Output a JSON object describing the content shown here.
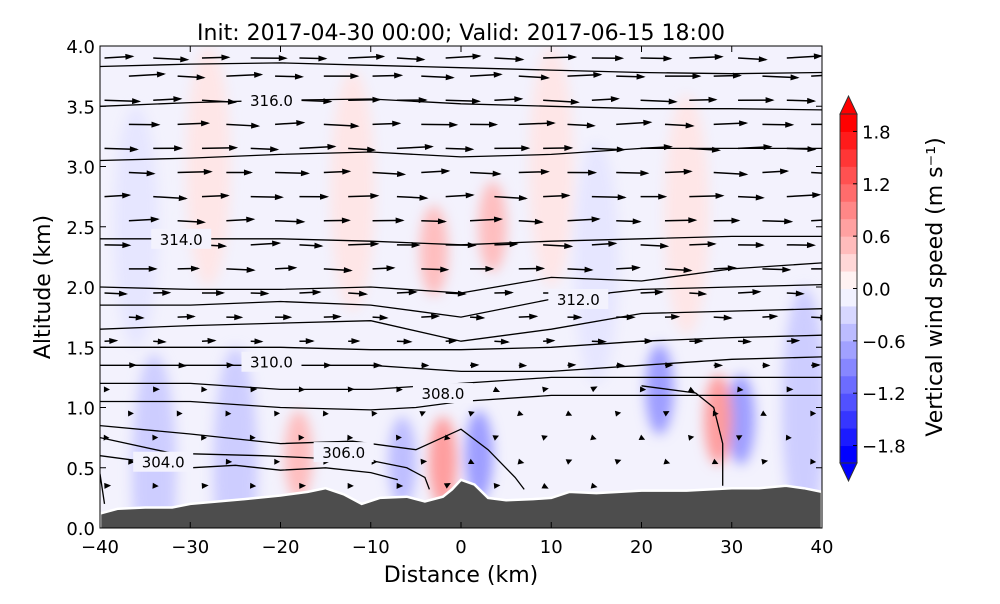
{
  "chart_data": {
    "type": "heatmap",
    "title": "Init: 2017-04-30 00:00; Valid: 2017-06-15 18:00",
    "xlabel": "Distance (km)",
    "ylabel": "Altitude (km)",
    "xlim": [
      -40,
      40
    ],
    "ylim": [
      0,
      4
    ],
    "xticks": [
      -40,
      -30,
      -20,
      -10,
      0,
      10,
      20,
      30,
      40
    ],
    "xtick_labels": [
      "−40",
      "−30",
      "−20",
      "−10",
      "0",
      "10",
      "20",
      "30",
      "40"
    ],
    "yticks": [
      0,
      0.5,
      1,
      1.5,
      2,
      2.5,
      3,
      3.5,
      4
    ],
    "ytick_labels": [
      "0.0",
      "0.5",
      "1.0",
      "1.5",
      "2.0",
      "2.5",
      "3.0",
      "3.5",
      "4.0"
    ],
    "colorbar": {
      "label": "Vertical wind speed (m s⁻¹)",
      "range": [
        -2.0,
        2.0
      ],
      "levels": 20,
      "extend": "both",
      "ticks": [
        1.8,
        1.2,
        0.6,
        0.0,
        -0.6,
        -1.2,
        -1.8
      ],
      "tick_labels": [
        "1.8",
        "1.2",
        "0.6",
        "0.0",
        "−0.6",
        "−1.2",
        "−1.8"
      ],
      "colormap": "bwr"
    },
    "terrain": {
      "color": "#4d4d4d",
      "points": [
        [
          -40,
          0.12
        ],
        [
          -38,
          0.16
        ],
        [
          -35,
          0.17
        ],
        [
          -32,
          0.17
        ],
        [
          -30,
          0.2
        ],
        [
          -27,
          0.22
        ],
        [
          -24,
          0.24
        ],
        [
          -20,
          0.27
        ],
        [
          -17,
          0.3
        ],
        [
          -15,
          0.33
        ],
        [
          -13,
          0.28
        ],
        [
          -11,
          0.2
        ],
        [
          -9,
          0.25
        ],
        [
          -6,
          0.26
        ],
        [
          -4,
          0.22
        ],
        [
          -2,
          0.26
        ],
        [
          -1,
          0.32
        ],
        [
          0,
          0.4
        ],
        [
          1.5,
          0.36
        ],
        [
          3,
          0.25
        ],
        [
          5,
          0.23
        ],
        [
          8,
          0.24
        ],
        [
          10,
          0.25
        ],
        [
          12,
          0.3
        ],
        [
          15,
          0.29
        ],
        [
          20,
          0.31
        ],
        [
          25,
          0.31
        ],
        [
          30,
          0.33
        ],
        [
          33,
          0.33
        ],
        [
          36,
          0.35
        ],
        [
          38,
          0.33
        ],
        [
          40,
          0.3
        ]
      ]
    },
    "theta_contours": [
      {
        "label": "",
        "points": [
          [
            -40,
            3.83
          ],
          [
            -30,
            3.85
          ],
          [
            -20,
            3.86
          ],
          [
            -10,
            3.84
          ],
          [
            0,
            3.82
          ],
          [
            10,
            3.8
          ],
          [
            20,
            3.78
          ],
          [
            30,
            3.77
          ],
          [
            40,
            3.78
          ]
        ]
      },
      {
        "label": "316.0",
        "label_at": [
          -21,
          3.55
        ],
        "points": [
          [
            -40,
            3.5
          ],
          [
            -30,
            3.53
          ],
          [
            -20,
            3.55
          ],
          [
            -10,
            3.56
          ],
          [
            0,
            3.52
          ],
          [
            10,
            3.5
          ],
          [
            20,
            3.48
          ],
          [
            30,
            3.48
          ],
          [
            40,
            3.47
          ]
        ]
      },
      {
        "label": "",
        "points": [
          [
            -40,
            3.05
          ],
          [
            -30,
            3.07
          ],
          [
            -20,
            3.1
          ],
          [
            -10,
            3.12
          ],
          [
            0,
            3.08
          ],
          [
            10,
            3.1
          ],
          [
            20,
            3.15
          ],
          [
            30,
            3.15
          ],
          [
            40,
            3.15
          ]
        ]
      },
      {
        "label": "314.0",
        "label_at": [
          -31,
          2.4
        ],
        "points": [
          [
            -40,
            2.4
          ],
          [
            -30,
            2.4
          ],
          [
            -20,
            2.4
          ],
          [
            -10,
            2.38
          ],
          [
            0,
            2.35
          ],
          [
            10,
            2.38
          ],
          [
            20,
            2.4
          ],
          [
            30,
            2.42
          ],
          [
            40,
            2.42
          ]
        ]
      },
      {
        "label": "",
        "points": [
          [
            -40,
            2.0
          ],
          [
            -30,
            1.98
          ],
          [
            -20,
            1.98
          ],
          [
            -10,
            2.0
          ],
          [
            0,
            1.95
          ],
          [
            10,
            2.08
          ],
          [
            20,
            2.05
          ],
          [
            30,
            2.15
          ],
          [
            40,
            2.2
          ]
        ]
      },
      {
        "label": "312.0",
        "label_at": [
          13,
          1.9
        ],
        "points": [
          [
            -40,
            1.85
          ],
          [
            -30,
            1.85
          ],
          [
            -20,
            1.88
          ],
          [
            -10,
            1.85
          ],
          [
            0,
            1.75
          ],
          [
            10,
            1.9
          ],
          [
            20,
            1.98
          ],
          [
            30,
            2.0
          ],
          [
            40,
            2.02
          ]
        ]
      },
      {
        "label": "",
        "points": [
          [
            -40,
            1.65
          ],
          [
            -30,
            1.68
          ],
          [
            -20,
            1.7
          ],
          [
            -10,
            1.72
          ],
          [
            0,
            1.55
          ],
          [
            10,
            1.65
          ],
          [
            20,
            1.78
          ],
          [
            30,
            1.8
          ],
          [
            40,
            1.82
          ]
        ]
      },
      {
        "label": "",
        "points": [
          [
            -40,
            1.5
          ],
          [
            -30,
            1.5
          ],
          [
            -20,
            1.5
          ],
          [
            -10,
            1.48
          ],
          [
            0,
            1.48
          ],
          [
            10,
            1.5
          ],
          [
            20,
            1.55
          ],
          [
            30,
            1.58
          ],
          [
            40,
            1.6
          ]
        ]
      },
      {
        "label": "310.0",
        "label_at": [
          -21,
          1.38
        ],
        "points": [
          [
            -40,
            1.35
          ],
          [
            -30,
            1.35
          ],
          [
            -20,
            1.35
          ],
          [
            -10,
            1.35
          ],
          [
            0,
            1.3
          ],
          [
            10,
            1.3
          ],
          [
            20,
            1.35
          ],
          [
            30,
            1.4
          ],
          [
            40,
            1.42
          ]
        ]
      },
      {
        "label": "",
        "points": [
          [
            -40,
            1.2
          ],
          [
            -30,
            1.2
          ],
          [
            -20,
            1.15
          ],
          [
            -10,
            1.15
          ],
          [
            0,
            1.2
          ],
          [
            10,
            1.25
          ],
          [
            20,
            1.25
          ],
          [
            30,
            1.25
          ],
          [
            40,
            1.25
          ]
        ]
      },
      {
        "label": "308.0",
        "label_at": [
          -2,
          1.12
        ],
        "points": [
          [
            -40,
            1.05
          ],
          [
            -30,
            1.05
          ],
          [
            -20,
            1.0
          ],
          [
            -10,
            0.98
          ],
          [
            -5,
            1.0
          ],
          [
            0,
            1.05
          ],
          [
            10,
            1.1
          ],
          [
            20,
            1.1
          ],
          [
            30,
            1.1
          ],
          [
            40,
            1.1
          ]
        ]
      },
      {
        "label": "",
        "points": [
          [
            -40,
            0.85
          ],
          [
            -30,
            0.78
          ],
          [
            -20,
            0.7
          ],
          [
            -12,
            0.72
          ],
          [
            -5,
            0.65
          ],
          [
            0,
            0.82
          ],
          [
            3,
            0.65
          ],
          [
            6,
            0.42
          ],
          [
            7,
            0.32
          ]
        ]
      },
      {
        "label": "306.0",
        "label_at": [
          -13,
          0.63
        ],
        "points": [
          [
            -40,
            0.75
          ],
          [
            -32,
            0.62
          ],
          [
            -22,
            0.6
          ],
          [
            -16,
            0.58
          ],
          [
            -10,
            0.56
          ],
          [
            -6,
            0.5
          ],
          [
            -4,
            0.42
          ],
          [
            -3.5,
            0.32
          ]
        ]
      },
      {
        "label": "304.0",
        "label_at": [
          -33,
          0.55
        ],
        "points": [
          [
            -40,
            0.6
          ],
          [
            -35,
            0.55
          ],
          [
            -30,
            0.5
          ],
          [
            -25,
            0.52
          ],
          [
            -20,
            0.48
          ],
          [
            -15,
            0.5
          ],
          [
            -10,
            0.46
          ],
          [
            -7,
            0.4
          ]
        ]
      },
      {
        "label": "",
        "points": [
          [
            -40,
            0.45
          ],
          [
            -39.5,
            0.2
          ]
        ]
      },
      {
        "label": "",
        "points": [
          [
            20,
            1.18
          ],
          [
            26,
            1.12
          ],
          [
            28,
            1.0
          ],
          [
            29,
            0.7
          ],
          [
            29,
            0.35
          ]
        ]
      }
    ],
    "w_anomalies": [
      {
        "x": -3,
        "alt": 2.3,
        "w": 0.4
      },
      {
        "x": 3.5,
        "alt": 2.5,
        "w": 0.4
      },
      {
        "x": -2,
        "alt": 0.55,
        "w": 0.6
      },
      {
        "x": -18,
        "alt": 0.6,
        "w": 0.4
      },
      {
        "x": 2,
        "alt": 0.6,
        "w": -0.6
      },
      {
        "x": -6.5,
        "alt": 0.55,
        "w": -0.4
      },
      {
        "x": -25,
        "alt": 0.5,
        "w": -0.3
      },
      {
        "x": -34,
        "alt": 0.45,
        "w": -0.3
      },
      {
        "x": 22,
        "alt": 1.15,
        "w": -0.6
      },
      {
        "x": 31,
        "alt": 0.9,
        "w": -0.6
      },
      {
        "x": 28.5,
        "alt": 0.9,
        "w": 0.6
      },
      {
        "x": 38,
        "alt": 1.0,
        "w": -0.3
      },
      {
        "x": -28,
        "alt": 3.0,
        "w": 0.15
      },
      {
        "x": -12,
        "alt": 2.8,
        "w": 0.15
      },
      {
        "x": 10,
        "alt": 3.0,
        "w": 0.15
      },
      {
        "x": 25,
        "alt": 2.6,
        "w": 0.15
      },
      {
        "x": -36,
        "alt": 2.5,
        "w": -0.15
      },
      {
        "x": 15,
        "alt": 2.2,
        "w": -0.15
      }
    ],
    "wind_profile": {
      "altitudes": [
        0.35,
        0.55,
        0.75,
        0.95,
        1.15,
        1.35,
        1.55,
        1.75,
        1.95,
        2.15,
        2.35,
        2.55,
        2.75,
        2.95,
        3.15,
        3.35,
        3.55,
        3.75,
        3.9
      ],
      "u_rel": [
        0.12,
        0.1,
        0.06,
        0.08,
        0.12,
        0.2,
        0.35,
        0.45,
        0.55,
        0.7,
        0.75,
        0.8,
        0.85,
        0.85,
        0.9,
        0.9,
        0.9,
        0.9,
        0.9
      ]
    }
  }
}
